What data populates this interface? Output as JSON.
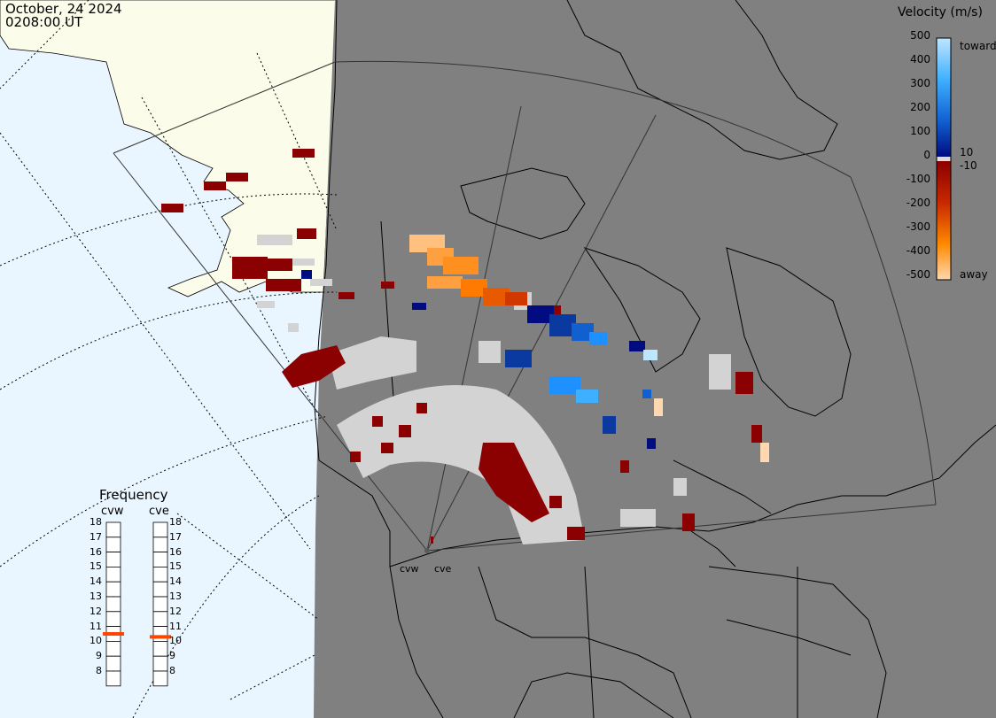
{
  "timestamp": {
    "date": "October, 24 2024",
    "time": "0208:00 UT"
  },
  "velocity_legend": {
    "title": "Velocity (m/s)",
    "ticks": [
      "500",
      "400",
      "300",
      "200",
      "100",
      "0",
      "-100",
      "-200",
      "-300",
      "-400",
      "-500"
    ],
    "extra_labels": {
      "toward": "toward",
      "pos10": "10",
      "neg10": "-10",
      "away": "away"
    },
    "positive_colors": [
      "#bfe6ff",
      "#7fd0ff",
      "#3fb0ff",
      "#1e90ff",
      "#1060d0",
      "#0a3aa0",
      "#000c80"
    ],
    "negative_colors": [
      "#8b0000",
      "#b01800",
      "#d03800",
      "#e85a00",
      "#ff8a00",
      "#ffb060",
      "#ffd8b0"
    ]
  },
  "frequency_panel": {
    "title": "Frequency",
    "radars": [
      {
        "name": "cvw",
        "frequency": 11
      },
      {
        "name": "cve",
        "frequency": 10.8
      }
    ],
    "scale": [
      "18",
      "17",
      "16",
      "15",
      "14",
      "13",
      "12",
      "11",
      "10",
      "9",
      "8"
    ],
    "scale_min": 8,
    "scale_max": 18
  },
  "stations": [
    "cvw",
    "cve"
  ],
  "colors": {
    "ocean": "#e9f6ff",
    "land_day": "#fcfcea",
    "night": "#808080",
    "ground_scatter": "#d3d3d3",
    "marker": "#ff4500"
  }
}
